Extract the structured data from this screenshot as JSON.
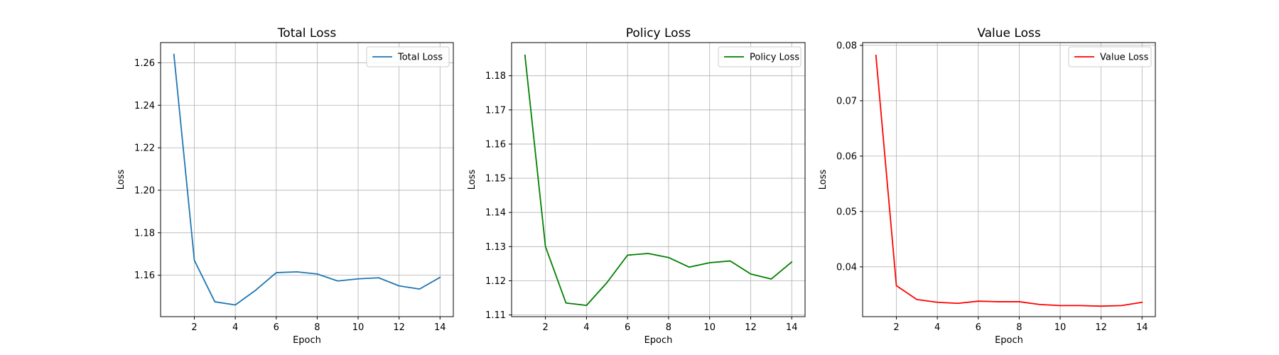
{
  "chart_data": [
    {
      "type": "line",
      "title": "Total Loss",
      "xlabel": "Epoch",
      "ylabel": "Loss",
      "xlim": [
        0.35,
        14.65
      ],
      "ylim": [
        1.1405,
        1.2695
      ],
      "xticks": [
        2,
        4,
        6,
        8,
        10,
        12,
        14
      ],
      "yticks": [
        1.16,
        1.18,
        1.2,
        1.22,
        1.24,
        1.26
      ],
      "grid": true,
      "legend": "upper right",
      "series": [
        {
          "name": "Total Loss",
          "color": "#1f77b4",
          "x": [
            1,
            2,
            3,
            4,
            5,
            6,
            7,
            8,
            9,
            10,
            11,
            12,
            13,
            14
          ],
          "y": [
            1.264,
            1.167,
            1.1475,
            1.146,
            1.153,
            1.1612,
            1.1616,
            1.1606,
            1.1573,
            1.1583,
            1.1588,
            1.155,
            1.1535,
            1.159
          ]
        }
      ]
    },
    {
      "type": "line",
      "title": "Policy Loss",
      "xlabel": "Epoch",
      "ylabel": "Loss",
      "xlim": [
        0.35,
        14.65
      ],
      "ylim": [
        1.1095,
        1.1897
      ],
      "xticks": [
        2,
        4,
        6,
        8,
        10,
        12,
        14
      ],
      "yticks": [
        1.11,
        1.12,
        1.13,
        1.14,
        1.15,
        1.16,
        1.17,
        1.18
      ],
      "grid": true,
      "legend": "upper right",
      "series": [
        {
          "name": "Policy Loss",
          "color": "#008000",
          "x": [
            1,
            2,
            3,
            4,
            5,
            6,
            7,
            8,
            9,
            10,
            11,
            12,
            13,
            14
          ],
          "y": [
            1.186,
            1.13,
            1.1135,
            1.1128,
            1.1195,
            1.1275,
            1.128,
            1.1268,
            1.124,
            1.1253,
            1.1258,
            1.122,
            1.1205,
            1.1255
          ]
        }
      ]
    },
    {
      "type": "line",
      "title": "Value Loss",
      "xlabel": "Epoch",
      "ylabel": "Loss",
      "xlim": [
        0.35,
        14.65
      ],
      "ylim": [
        0.031,
        0.0805
      ],
      "xticks": [
        2,
        4,
        6,
        8,
        10,
        12,
        14
      ],
      "yticks": [
        0.04,
        0.05,
        0.06,
        0.07,
        0.08
      ],
      "grid": true,
      "legend": "upper right",
      "series": [
        {
          "name": "Value Loss",
          "color": "#ff0000",
          "x": [
            1,
            2,
            3,
            4,
            5,
            6,
            7,
            8,
            9,
            10,
            11,
            12,
            13,
            14
          ],
          "y": [
            0.0782,
            0.0366,
            0.0341,
            0.0336,
            0.0334,
            0.0338,
            0.0337,
            0.0337,
            0.0332,
            0.033,
            0.033,
            0.0329,
            0.033,
            0.0336
          ]
        }
      ]
    }
  ]
}
